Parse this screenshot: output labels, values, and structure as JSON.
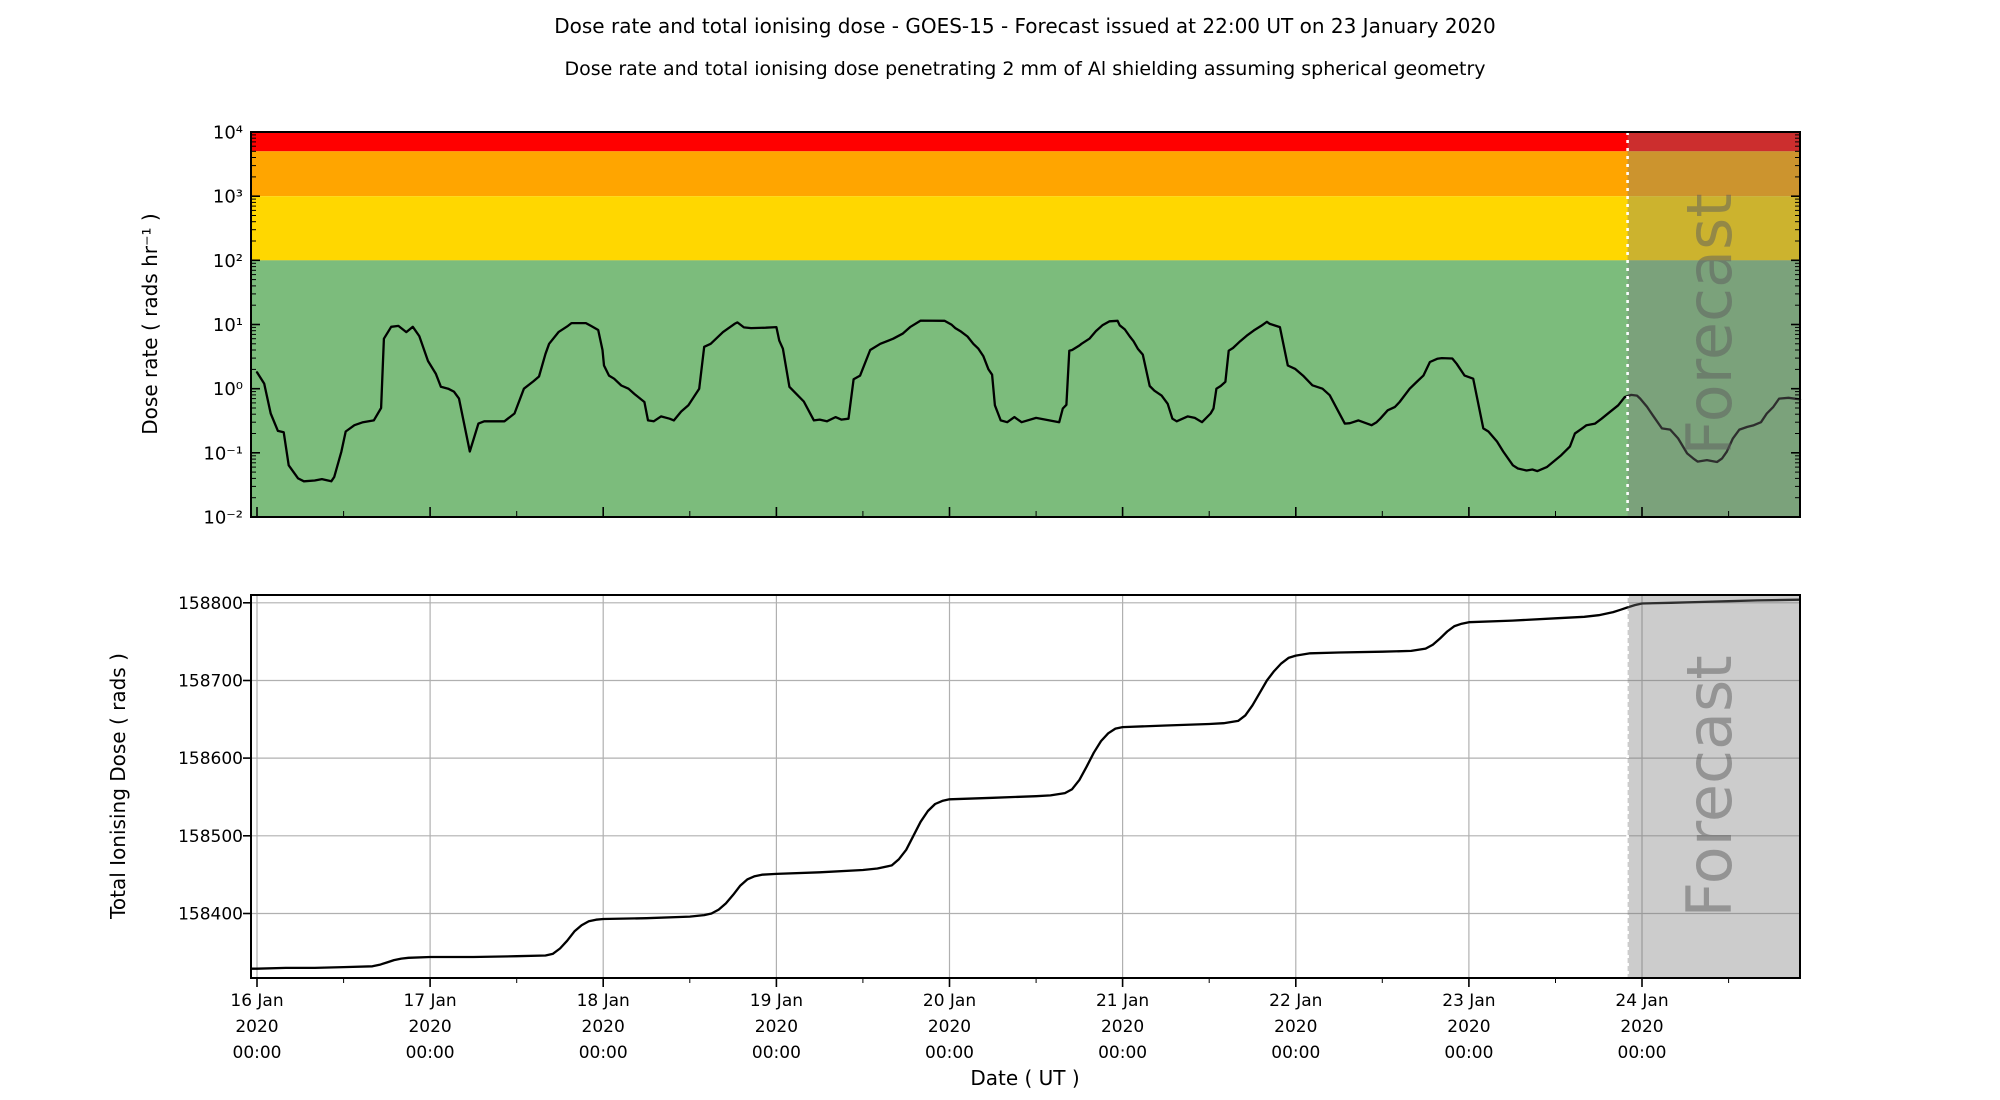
{
  "header": {
    "title": "Dose rate and total ionising dose - GOES-15 - Forecast issued at 22:00 UT on 23 January 2020",
    "subtitle": "Dose rate and total ionising dose penetrating 2 mm of Al shielding assuming spherical geometry"
  },
  "forecast": {
    "label": "Forecast",
    "start_hour": 190
  },
  "colors": {
    "band_red": "#ff0000",
    "band_orange": "#ffa500",
    "band_gold": "#ffd700",
    "band_green": "#7cbc7c",
    "line": "#000000",
    "grid": "#b0b0b0",
    "forecast_overlay": "rgba(122,122,122,0.38)",
    "forecast_text": "#5e5e5e",
    "divider": "#ffffff"
  },
  "x_axis": {
    "label": "Date ( UT )",
    "day_labels": [
      "16 Jan",
      "17 Jan",
      "18 Jan",
      "19 Jan",
      "20 Jan",
      "21 Jan",
      "22 Jan",
      "23 Jan",
      "24 Jan"
    ],
    "year_line": "2020",
    "time_line": "00:00",
    "day_tick_hours": [
      0,
      24,
      48,
      72,
      96,
      120,
      144,
      168,
      192
    ],
    "minor_tick_hours": [
      12,
      36,
      60,
      84,
      108,
      132,
      156,
      180,
      204
    ],
    "xlim_hours": [
      -0.83,
      213.9
    ]
  },
  "chart_data": [
    {
      "type": "line",
      "panel": "dose-rate",
      "ylabel": "Dose rate ( rads hr⁻¹ )",
      "yscale": "log",
      "ylim": [
        0.01,
        10000
      ],
      "ytick_values": [
        10000,
        1000,
        100,
        10,
        1,
        0.1,
        0.01
      ],
      "ytick_labels": [
        "10⁴",
        "10³",
        "10²",
        "10¹",
        "10⁰",
        "10⁻¹",
        "10⁻²"
      ],
      "bands": [
        {
          "from": 5000,
          "to": 10000,
          "color_key": "band_red"
        },
        {
          "from": 1000,
          "to": 5000,
          "color_key": "band_orange"
        },
        {
          "from": 100,
          "to": 1000,
          "color_key": "band_gold"
        },
        {
          "from": 0.01,
          "to": 100,
          "color_key": "band_green"
        }
      ],
      "points": [
        [
          0,
          1.8
        ],
        [
          1,
          1.2
        ],
        [
          1.9,
          0.41
        ],
        [
          2.9,
          0.22
        ],
        [
          3.7,
          0.21
        ],
        [
          4.4,
          0.064
        ],
        [
          5.7,
          0.04
        ],
        [
          6.5,
          0.036
        ],
        [
          8,
          0.037
        ],
        [
          9,
          0.039
        ],
        [
          10.3,
          0.036
        ],
        [
          10.7,
          0.042
        ],
        [
          11.7,
          0.105
        ],
        [
          12.3,
          0.215
        ],
        [
          13.5,
          0.27
        ],
        [
          14.7,
          0.3
        ],
        [
          16.2,
          0.32
        ],
        [
          17.2,
          0.5
        ],
        [
          17.6,
          6
        ],
        [
          18.6,
          9.2
        ],
        [
          19.6,
          9.5
        ],
        [
          20.7,
          7.6
        ],
        [
          21.6,
          9.2
        ],
        [
          22.5,
          6.6
        ],
        [
          23.7,
          2.7
        ],
        [
          24.8,
          1.7
        ],
        [
          25.5,
          1.07
        ],
        [
          26.5,
          1
        ],
        [
          27.3,
          0.9
        ],
        [
          28,
          0.7
        ],
        [
          29.5,
          0.105
        ],
        [
          30.7,
          0.285
        ],
        [
          31.5,
          0.31
        ],
        [
          34.3,
          0.31
        ],
        [
          35.7,
          0.41
        ],
        [
          37,
          1
        ],
        [
          38.3,
          1.3
        ],
        [
          39.1,
          1.55
        ],
        [
          40,
          3.5
        ],
        [
          40.5,
          5
        ],
        [
          41.8,
          7.6
        ],
        [
          43.1,
          9.5
        ],
        [
          43.6,
          10.5
        ],
        [
          45.6,
          10.5
        ],
        [
          46.3,
          9.5
        ],
        [
          47.3,
          8.2
        ],
        [
          47.9,
          4
        ],
        [
          48.1,
          2.3
        ],
        [
          48.8,
          1.6
        ],
        [
          49.5,
          1.43
        ],
        [
          50.5,
          1.12
        ],
        [
          51.5,
          1
        ],
        [
          52.3,
          0.83
        ],
        [
          53.7,
          0.62
        ],
        [
          54.2,
          0.32
        ],
        [
          55,
          0.31
        ],
        [
          56,
          0.37
        ],
        [
          57.2,
          0.34
        ],
        [
          57.8,
          0.32
        ],
        [
          58.8,
          0.44
        ],
        [
          59.8,
          0.55
        ],
        [
          61.3,
          1
        ],
        [
          62,
          4.5
        ],
        [
          62.9,
          5
        ],
        [
          64.6,
          7.6
        ],
        [
          66.2,
          10.2
        ],
        [
          66.6,
          10.8
        ],
        [
          67.5,
          9
        ],
        [
          68.5,
          8.8
        ],
        [
          70.5,
          8.9
        ],
        [
          72,
          9.1
        ],
        [
          72.4,
          5.6
        ],
        [
          72.9,
          4.2
        ],
        [
          73.8,
          1.07
        ],
        [
          74.5,
          0.89
        ],
        [
          75.8,
          0.63
        ],
        [
          77.2,
          0.32
        ],
        [
          78,
          0.33
        ],
        [
          79,
          0.31
        ],
        [
          80.2,
          0.36
        ],
        [
          81,
          0.33
        ],
        [
          82,
          0.34
        ],
        [
          82.7,
          1.4
        ],
        [
          83.6,
          1.6
        ],
        [
          85,
          4
        ],
        [
          86.4,
          5
        ],
        [
          88.2,
          6
        ],
        [
          89.5,
          7.2
        ],
        [
          90.6,
          9.2
        ],
        [
          92,
          11.5
        ],
        [
          95.3,
          11.4
        ],
        [
          96.3,
          9.9
        ],
        [
          96.8,
          8.8
        ],
        [
          97.5,
          7.9
        ],
        [
          98.5,
          6.5
        ],
        [
          99.3,
          5
        ],
        [
          100,
          4.2
        ],
        [
          100.7,
          3.2
        ],
        [
          101.4,
          2
        ],
        [
          101.9,
          1.65
        ],
        [
          102.3,
          0.55
        ],
        [
          103.1,
          0.32
        ],
        [
          104,
          0.3
        ],
        [
          105,
          0.36
        ],
        [
          106,
          0.3
        ],
        [
          108,
          0.35
        ],
        [
          111.2,
          0.3
        ],
        [
          111.7,
          0.49
        ],
        [
          112.2,
          0.56
        ],
        [
          112.6,
          3.9
        ],
        [
          113,
          4
        ],
        [
          114,
          4.7
        ],
        [
          114.3,
          5
        ],
        [
          115.4,
          6
        ],
        [
          116.3,
          7.9
        ],
        [
          117.2,
          9.7
        ],
        [
          118.2,
          11.2
        ],
        [
          119.3,
          11.4
        ],
        [
          119.6,
          9.7
        ],
        [
          120.3,
          8.4
        ],
        [
          121,
          6.5
        ],
        [
          121.5,
          5.5
        ],
        [
          122.1,
          4.2
        ],
        [
          122.8,
          3.4
        ],
        [
          123.75,
          1.1
        ],
        [
          124.4,
          0.93
        ],
        [
          125.4,
          0.78
        ],
        [
          126.25,
          0.58
        ],
        [
          126.9,
          0.34
        ],
        [
          127.5,
          0.31
        ],
        [
          129,
          0.37
        ],
        [
          130,
          0.35
        ],
        [
          131,
          0.3
        ],
        [
          132.2,
          0.41
        ],
        [
          132.6,
          0.49
        ],
        [
          133,
          1
        ],
        [
          133.6,
          1.1
        ],
        [
          134.25,
          1.28
        ],
        [
          134.7,
          3.9
        ],
        [
          135.3,
          4.3
        ],
        [
          136.3,
          5.5
        ],
        [
          137.2,
          6.7
        ],
        [
          138.2,
          8.1
        ],
        [
          139.2,
          9.5
        ],
        [
          140,
          11
        ],
        [
          140.4,
          10.2
        ],
        [
          141.8,
          9.1
        ],
        [
          142.9,
          2.3
        ],
        [
          143.9,
          2.04
        ],
        [
          145,
          1.6
        ],
        [
          146.3,
          1.13
        ],
        [
          147.7,
          1
        ],
        [
          148.7,
          0.79
        ],
        [
          150.8,
          0.285
        ],
        [
          151.5,
          0.29
        ],
        [
          152.7,
          0.32
        ],
        [
          154.5,
          0.27
        ],
        [
          155.2,
          0.3
        ],
        [
          155.7,
          0.34
        ],
        [
          156.75,
          0.46
        ],
        [
          157.75,
          0.52
        ],
        [
          158.4,
          0.62
        ],
        [
          159.8,
          1
        ],
        [
          160.75,
          1.27
        ],
        [
          161.7,
          1.6
        ],
        [
          162.6,
          2.6
        ],
        [
          163.6,
          2.92
        ],
        [
          164.25,
          3
        ],
        [
          165.7,
          2.95
        ],
        [
          166.3,
          2.45
        ],
        [
          167.4,
          1.6
        ],
        [
          168.6,
          1.43
        ],
        [
          170,
          0.24
        ],
        [
          170.7,
          0.215
        ],
        [
          171.9,
          0.15
        ],
        [
          172.75,
          0.105
        ],
        [
          174.1,
          0.064
        ],
        [
          174.8,
          0.057
        ],
        [
          176,
          0.053
        ],
        [
          176.8,
          0.055
        ],
        [
          177.5,
          0.052
        ],
        [
          178.8,
          0.06
        ],
        [
          180.8,
          0.092
        ],
        [
          182,
          0.125
        ],
        [
          182.7,
          0.2
        ],
        [
          183.7,
          0.24
        ],
        [
          184.3,
          0.27
        ],
        [
          185.5,
          0.285
        ],
        [
          186.4,
          0.34
        ],
        [
          187.5,
          0.43
        ],
        [
          188.7,
          0.55
        ],
        [
          189.6,
          0.74
        ],
        [
          190.5,
          0.8
        ],
        [
          191.3,
          0.78
        ],
        [
          191.75,
          0.7
        ],
        [
          192.7,
          0.52
        ],
        [
          193.5,
          0.385
        ],
        [
          194.75,
          0.24
        ],
        [
          195.9,
          0.23
        ],
        [
          197,
          0.168
        ],
        [
          198.25,
          0.098
        ],
        [
          199.1,
          0.082
        ],
        [
          199.7,
          0.073
        ],
        [
          201,
          0.077
        ],
        [
          202.4,
          0.072
        ],
        [
          203.1,
          0.082
        ],
        [
          203.75,
          0.104
        ],
        [
          204.6,
          0.168
        ],
        [
          205.5,
          0.23
        ],
        [
          206.6,
          0.254
        ],
        [
          207.5,
          0.27
        ],
        [
          208.5,
          0.3
        ],
        [
          209.3,
          0.41
        ],
        [
          210.2,
          0.52
        ],
        [
          211,
          0.7
        ],
        [
          212.3,
          0.72
        ],
        [
          213.9,
          0.68
        ]
      ]
    },
    {
      "type": "line",
      "panel": "total-ionising-dose",
      "ylabel": "Total Ionising Dose ( rads )",
      "yscale": "linear",
      "ylim": [
        158317,
        158810
      ],
      "ytick_values": [
        158800,
        158700,
        158600,
        158500,
        158400
      ],
      "ytick_labels": [
        "158800",
        "158700",
        "158600",
        "158500",
        "158400"
      ],
      "grid": true,
      "points": [
        [
          -0.8,
          158329
        ],
        [
          0,
          158329
        ],
        [
          4,
          158330
        ],
        [
          8,
          158330
        ],
        [
          12,
          158331
        ],
        [
          16,
          158332
        ],
        [
          17,
          158334
        ],
        [
          18,
          158337
        ],
        [
          19,
          158340
        ],
        [
          20,
          158342
        ],
        [
          21,
          158343
        ],
        [
          24,
          158344
        ],
        [
          30,
          158344
        ],
        [
          36,
          158345
        ],
        [
          40,
          158346
        ],
        [
          41,
          158348
        ],
        [
          42,
          158355
        ],
        [
          43,
          158365
        ],
        [
          44,
          158377
        ],
        [
          45,
          158385
        ],
        [
          46,
          158390
        ],
        [
          47,
          158392
        ],
        [
          48,
          158393
        ],
        [
          54,
          158394
        ],
        [
          60,
          158396
        ],
        [
          62,
          158398
        ],
        [
          63,
          158400
        ],
        [
          64,
          158405
        ],
        [
          65,
          158413
        ],
        [
          66,
          158424
        ],
        [
          67,
          158436
        ],
        [
          68,
          158444
        ],
        [
          69,
          158448
        ],
        [
          70,
          158450
        ],
        [
          72,
          158451
        ],
        [
          78,
          158453
        ],
        [
          84,
          158456
        ],
        [
          86,
          158458
        ],
        [
          88,
          158462
        ],
        [
          89,
          158470
        ],
        [
          90,
          158482
        ],
        [
          91,
          158500
        ],
        [
          92,
          158518
        ],
        [
          93,
          158532
        ],
        [
          94,
          158541
        ],
        [
          95,
          158545
        ],
        [
          96,
          158547
        ],
        [
          102,
          158549
        ],
        [
          108,
          158551
        ],
        [
          110,
          158552
        ],
        [
          112,
          158555
        ],
        [
          113,
          158560
        ],
        [
          114,
          158572
        ],
        [
          115,
          158589
        ],
        [
          116,
          158607
        ],
        [
          117,
          158622
        ],
        [
          118,
          158632
        ],
        [
          119,
          158638
        ],
        [
          120,
          158640
        ],
        [
          126,
          158642
        ],
        [
          132,
          158644
        ],
        [
          134,
          158645
        ],
        [
          136,
          158648
        ],
        [
          137,
          158655
        ],
        [
          138,
          158668
        ],
        [
          139,
          158684
        ],
        [
          140,
          158700
        ],
        [
          141,
          158712
        ],
        [
          142,
          158722
        ],
        [
          143,
          158729
        ],
        [
          144,
          158732
        ],
        [
          146,
          158735
        ],
        [
          150,
          158736
        ],
        [
          156,
          158737
        ],
        [
          160,
          158738
        ],
        [
          162,
          158741
        ],
        [
          163,
          158746
        ],
        [
          164,
          158754
        ],
        [
          165,
          158763
        ],
        [
          166,
          158770
        ],
        [
          167,
          158773
        ],
        [
          168,
          158775
        ],
        [
          174,
          158777
        ],
        [
          180,
          158780
        ],
        [
          184,
          158782
        ],
        [
          186,
          158784
        ],
        [
          188,
          158788
        ],
        [
          189,
          158791
        ],
        [
          190,
          158794
        ],
        [
          191,
          158797
        ],
        [
          192,
          158799
        ],
        [
          196,
          158800
        ],
        [
          200,
          158801
        ],
        [
          204,
          158802
        ],
        [
          208,
          158803
        ],
        [
          213.9,
          158804
        ]
      ]
    }
  ]
}
